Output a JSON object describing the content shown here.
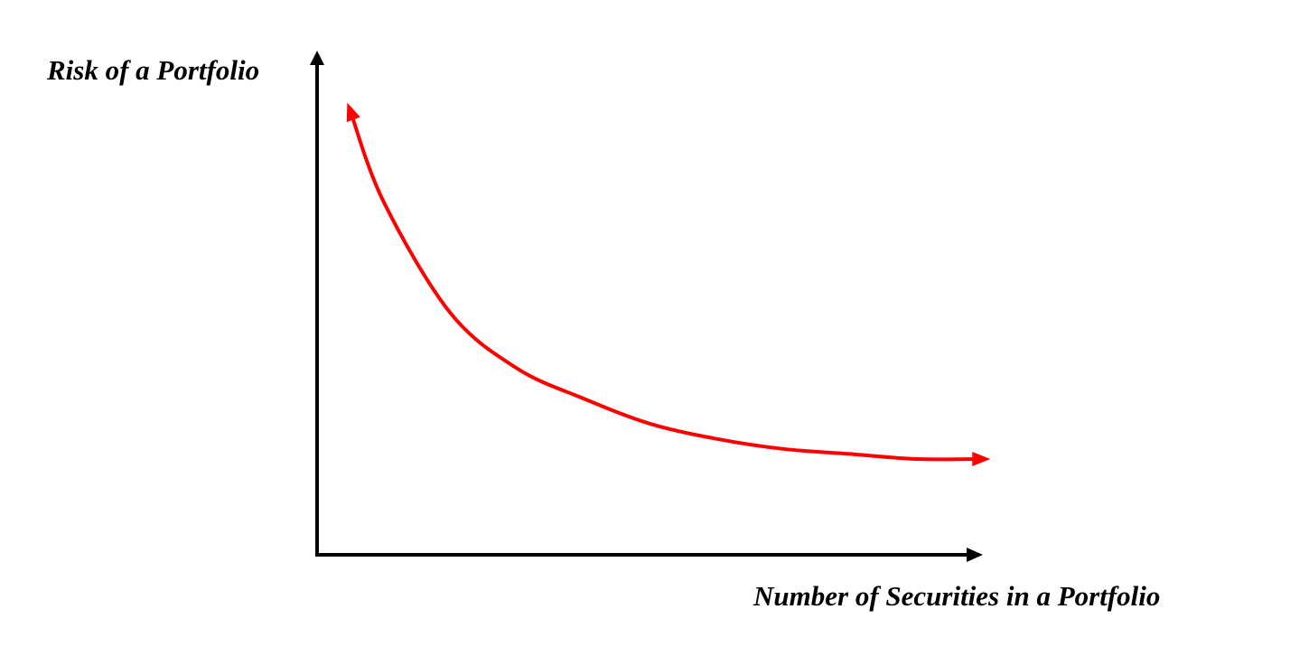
{
  "chart_data": {
    "type": "line",
    "title": "",
    "xlabel": "Number of Securities in a Portfolio",
    "ylabel": "Risk of a Portfolio",
    "grid": false,
    "ticks": false,
    "series": [
      {
        "curve_shape": "decreasing-convex, asymptotic",
        "color": "#ff0000",
        "x": [
          0.05,
          0.1,
          0.2,
          0.3,
          0.4,
          0.5,
          0.6,
          0.7,
          0.8,
          0.9,
          0.995
        ],
        "values": [
          0.88,
          0.7,
          0.48,
          0.37,
          0.31,
          0.26,
          0.23,
          0.21,
          0.2,
          0.19,
          0.19
        ]
      }
    ],
    "xlim": [
      0,
      1
    ],
    "ylim": [
      0,
      1
    ],
    "axis_color": "#000000"
  }
}
